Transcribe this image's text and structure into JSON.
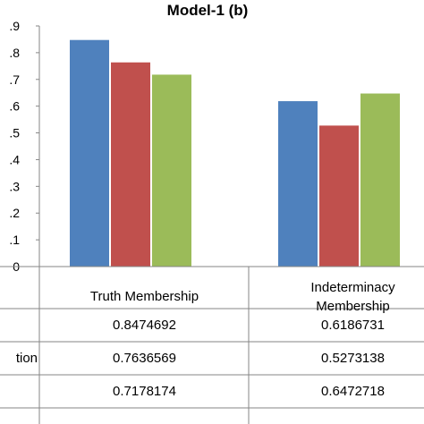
{
  "chart_data": {
    "type": "bar",
    "title": "Model-1 (b)",
    "categories": [
      "Truth Membership",
      "Indeterminacy Membership",
      ""
    ],
    "category_label_lines": [
      [
        "Truth Membership"
      ],
      [
        "Indeterminacy",
        "Membership"
      ],
      [
        ""
      ]
    ],
    "series": [
      {
        "name": "",
        "color": "#4F81BD",
        "values": [
          0.8474692,
          0.6186731,
          null
        ],
        "value_labels": [
          "0.8474692",
          "0.6186731",
          ""
        ]
      },
      {
        "name": "",
        "row_label_partial": "tion",
        "color": "#C0504D",
        "values": [
          0.7636569,
          0.5273138,
          null
        ],
        "value_labels": [
          "0.7636569",
          "0.5273138",
          ""
        ]
      },
      {
        "name": "",
        "color": "#9BBB59",
        "values": [
          0.7178174,
          0.6472718,
          null
        ],
        "value_labels": [
          "0.7178174",
          "0.6472718",
          ""
        ]
      }
    ],
    "y_ticks": [
      ".9",
      ".8",
      ".7",
      ".6",
      ".5",
      ".4",
      ".3",
      ".2",
      ".1",
      "0"
    ],
    "ylim": [
      0,
      0.9
    ],
    "grid": false,
    "legend": "none",
    "data_table": true
  }
}
